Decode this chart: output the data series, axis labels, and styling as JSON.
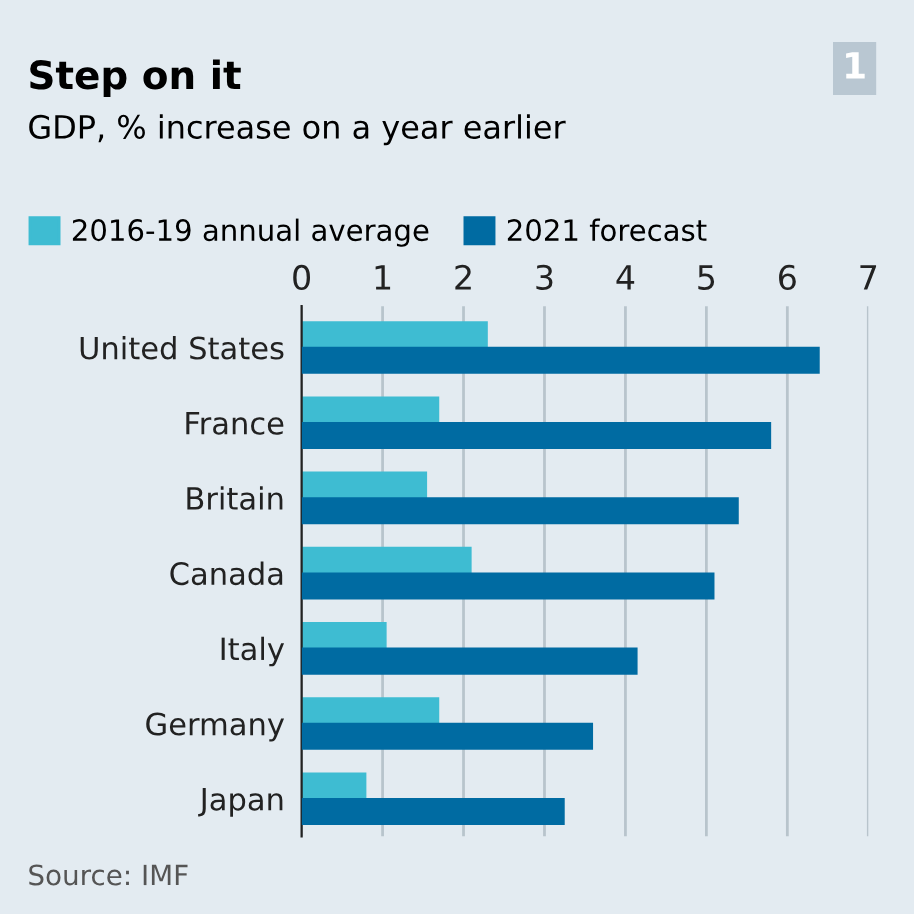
{
  "chart_data": {
    "type": "bar",
    "orientation": "horizontal",
    "title": "Step on it",
    "subtitle": "GDP, % increase on a year earlier",
    "categories": [
      "United States",
      "France",
      "Britain",
      "Canada",
      "Italy",
      "Germany",
      "Japan"
    ],
    "series": [
      {
        "name": "2016-19 annual average",
        "color": "#3ebcd2",
        "values": [
          2.3,
          1.7,
          1.55,
          2.1,
          1.05,
          1.7,
          0.8
        ]
      },
      {
        "name": "2021 forecast",
        "color": "#006ba2",
        "values": [
          6.4,
          5.8,
          5.4,
          5.1,
          4.15,
          3.6,
          3.25
        ]
      }
    ],
    "xlim": [
      0,
      7
    ],
    "xticks": [
      0,
      1,
      2,
      3,
      4,
      5,
      6,
      7
    ],
    "grid": "x",
    "legend": "top",
    "annotations": [
      "1",
      "Source: IMF"
    ]
  }
}
